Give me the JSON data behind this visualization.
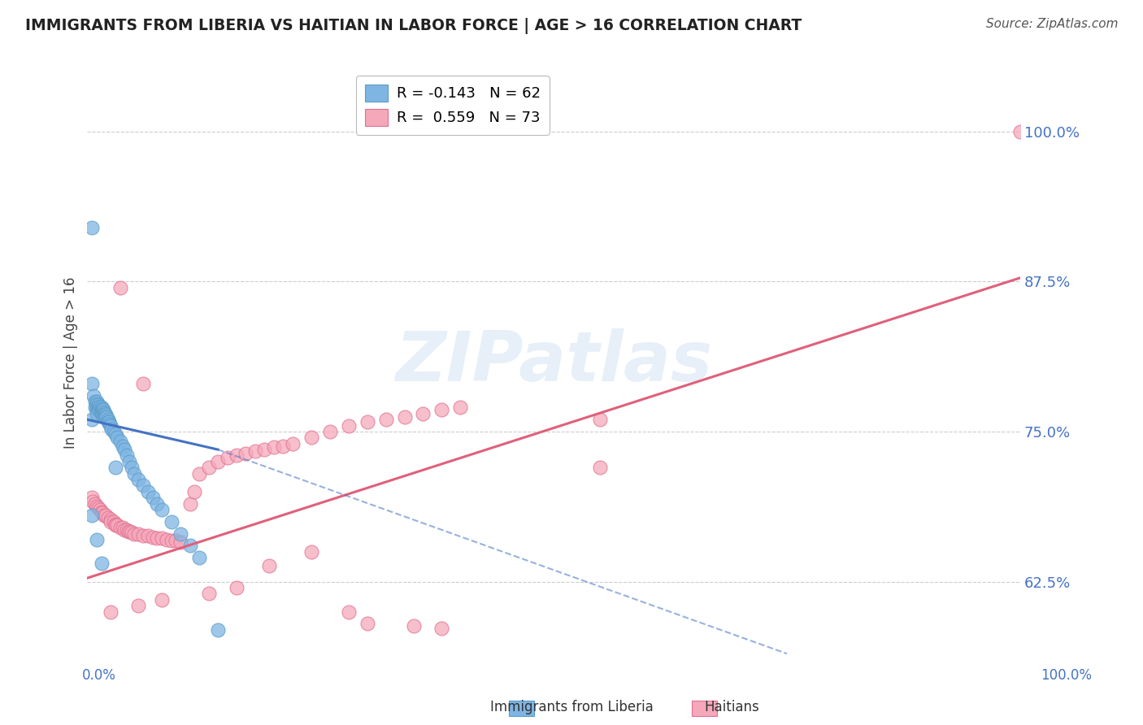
{
  "title": "IMMIGRANTS FROM LIBERIA VS HAITIAN IN LABOR FORCE | AGE > 16 CORRELATION CHART",
  "source": "Source: ZipAtlas.com",
  "ylabel": "In Labor Force | Age > 16",
  "y_tick_labels": [
    "62.5%",
    "75.0%",
    "87.5%",
    "100.0%"
  ],
  "y_tick_positions": [
    0.625,
    0.75,
    0.875,
    1.0
  ],
  "x_range": [
    0.0,
    1.0
  ],
  "y_range": [
    0.555,
    1.06
  ],
  "legend_r_liberia": "R = -0.143",
  "legend_n_liberia": "N = 62",
  "legend_r_haitian": "R =  0.559",
  "legend_n_haitian": "N = 73",
  "series_liberia": {
    "color": "#7eb5e3",
    "edge_color": "#5b9cc8",
    "x": [
      0.005,
      0.005,
      0.005,
      0.007,
      0.008,
      0.008,
      0.01,
      0.01,
      0.01,
      0.01,
      0.01,
      0.012,
      0.012,
      0.013,
      0.013,
      0.014,
      0.015,
      0.015,
      0.015,
      0.015,
      0.016,
      0.016,
      0.016,
      0.017,
      0.018,
      0.018,
      0.018,
      0.019,
      0.02,
      0.02,
      0.021,
      0.022,
      0.022,
      0.023,
      0.024,
      0.025,
      0.026,
      0.028,
      0.03,
      0.032,
      0.035,
      0.038,
      0.04,
      0.042,
      0.045,
      0.048,
      0.05,
      0.055,
      0.06,
      0.065,
      0.07,
      0.075,
      0.08,
      0.09,
      0.1,
      0.11,
      0.12,
      0.005,
      0.01,
      0.015,
      0.14,
      0.03
    ],
    "y": [
      0.92,
      0.79,
      0.76,
      0.78,
      0.775,
      0.77,
      0.775,
      0.773,
      0.77,
      0.768,
      0.765,
      0.772,
      0.769,
      0.77,
      0.768,
      0.771,
      0.77,
      0.768,
      0.767,
      0.765,
      0.769,
      0.767,
      0.765,
      0.768,
      0.766,
      0.764,
      0.762,
      0.765,
      0.764,
      0.762,
      0.762,
      0.76,
      0.758,
      0.758,
      0.756,
      0.755,
      0.752,
      0.75,
      0.748,
      0.745,
      0.742,
      0.738,
      0.735,
      0.73,
      0.725,
      0.72,
      0.715,
      0.71,
      0.705,
      0.7,
      0.695,
      0.69,
      0.685,
      0.675,
      0.665,
      0.655,
      0.645,
      0.68,
      0.66,
      0.64,
      0.585,
      0.72
    ]
  },
  "series_haitian": {
    "color": "#f5a8ba",
    "edge_color": "#e07090",
    "x": [
      0.005,
      0.006,
      0.008,
      0.01,
      0.012,
      0.014,
      0.015,
      0.016,
      0.018,
      0.02,
      0.022,
      0.025,
      0.025,
      0.028,
      0.03,
      0.03,
      0.032,
      0.035,
      0.038,
      0.04,
      0.042,
      0.044,
      0.046,
      0.048,
      0.05,
      0.055,
      0.06,
      0.065,
      0.07,
      0.075,
      0.08,
      0.085,
      0.09,
      0.095,
      0.1,
      0.11,
      0.115,
      0.12,
      0.13,
      0.14,
      0.15,
      0.16,
      0.17,
      0.18,
      0.19,
      0.2,
      0.21,
      0.22,
      0.24,
      0.26,
      0.28,
      0.3,
      0.32,
      0.34,
      0.36,
      0.38,
      0.4,
      0.025,
      0.055,
      0.08,
      0.13,
      0.16,
      0.195,
      0.24,
      0.28,
      0.3,
      0.35,
      0.38,
      0.035,
      0.06,
      0.55,
      0.55,
      1.0
    ],
    "y": [
      0.695,
      0.692,
      0.69,
      0.688,
      0.686,
      0.685,
      0.683,
      0.682,
      0.68,
      0.68,
      0.678,
      0.677,
      0.675,
      0.675,
      0.673,
      0.672,
      0.672,
      0.67,
      0.67,
      0.668,
      0.668,
      0.667,
      0.667,
      0.666,
      0.665,
      0.665,
      0.663,
      0.663,
      0.662,
      0.661,
      0.661,
      0.66,
      0.659,
      0.659,
      0.658,
      0.69,
      0.7,
      0.715,
      0.72,
      0.725,
      0.728,
      0.73,
      0.732,
      0.734,
      0.735,
      0.737,
      0.738,
      0.74,
      0.745,
      0.75,
      0.755,
      0.758,
      0.76,
      0.762,
      0.765,
      0.768,
      0.77,
      0.6,
      0.605,
      0.61,
      0.615,
      0.62,
      0.638,
      0.65,
      0.6,
      0.59,
      0.588,
      0.586,
      0.87,
      0.79,
      0.76,
      0.72,
      1.0
    ]
  },
  "liberia_trend": {
    "x_start": 0.0,
    "x_end": 0.14,
    "y_start": 0.76,
    "y_end": 0.735,
    "color": "#4472c4",
    "dashed_x_end": 0.75,
    "dashed_y_end": 0.565
  },
  "haitian_trend": {
    "x_start": 0.0,
    "x_end": 1.0,
    "y_start": 0.628,
    "y_end": 0.878,
    "color": "#e0607a"
  },
  "watermark": "ZIPatlas",
  "background_color": "#ffffff",
  "grid_color": "#cccccc"
}
